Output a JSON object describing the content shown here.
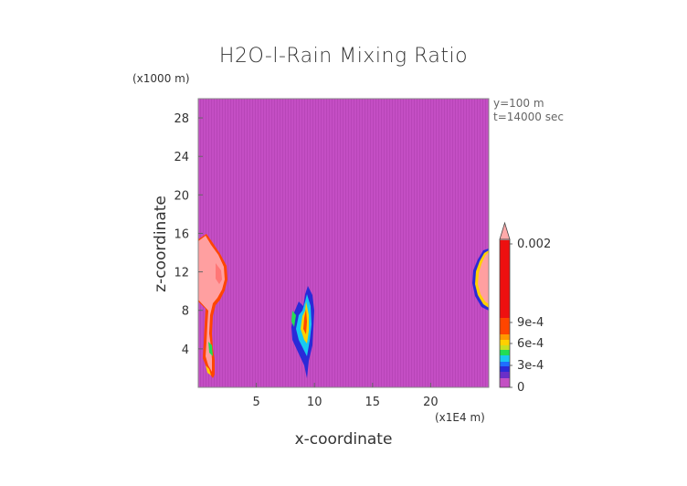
{
  "chart_data": {
    "type": "heatmap",
    "title": "H2O-l-Rain Mixing Ratio",
    "xlabel": "x-coordinate",
    "ylabel": "z-coordinate",
    "x_unit": "(x1E4 m)",
    "y_unit": "(x1000 m)",
    "xlim": [
      0,
      25
    ],
    "ylim": [
      0,
      30
    ],
    "x_ticks": [
      5,
      10,
      15,
      20
    ],
    "y_ticks": [
      4,
      8,
      12,
      16,
      20,
      24,
      28
    ],
    "grid": false,
    "info": [
      "y=100 m",
      "t=14000 sec"
    ],
    "colorbar": {
      "placement": "right",
      "tick_labels": [
        "0",
        "3e-4",
        "6e-4",
        "9e-4",
        "0.002"
      ],
      "tick_values": [
        0,
        0.0003,
        0.0006,
        0.0009,
        0.002
      ],
      "colors": [
        "#c34fc3",
        "#6a2fc8",
        "#2a2ad8",
        "#1f6fff",
        "#19c8f0",
        "#22dd55",
        "#c8e020",
        "#ffd000",
        "#ff9900",
        "#ff4500",
        "#ee1010",
        "#ffaaaa"
      ]
    },
    "background_value": 0,
    "features": [
      {
        "name": "left-cloud",
        "x_center": 1.0,
        "z_range": [
          1,
          16
        ],
        "peak": 0.002
      },
      {
        "name": "center-cloud",
        "x_center": 9.6,
        "z_range": [
          0.5,
          10.5
        ],
        "peak": 0.0009
      },
      {
        "name": "right-cloud",
        "x_center": 24.4,
        "z_range": [
          6.5,
          14.5
        ],
        "peak": 0.002
      }
    ]
  }
}
